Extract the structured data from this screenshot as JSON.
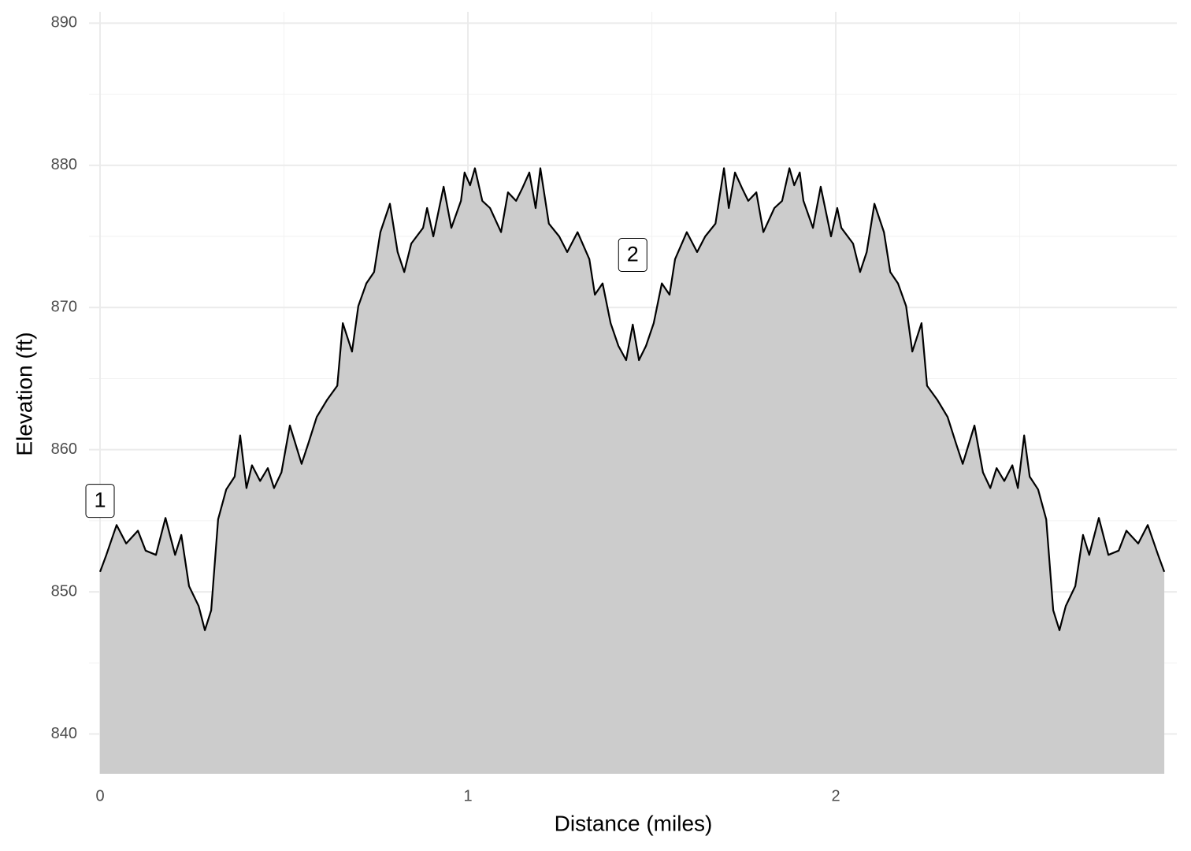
{
  "chart_data": {
    "type": "area",
    "x_label": "Distance (miles)",
    "y_label": "Elevation (ft)",
    "x": [
      0,
      0.017,
      0.045,
      0.071,
      0.103,
      0.124,
      0.152,
      0.178,
      0.204,
      0.221,
      0.242,
      0.268,
      0.285,
      0.302,
      0.321,
      0.343,
      0.366,
      0.381,
      0.398,
      0.413,
      0.435,
      0.456,
      0.473,
      0.493,
      0.516,
      0.548,
      0.567,
      0.589,
      0.617,
      0.645,
      0.66,
      0.685,
      0.702,
      0.724,
      0.745,
      0.762,
      0.788,
      0.809,
      0.827,
      0.846,
      0.878,
      0.889,
      0.906,
      0.934,
      0.955,
      0.981,
      0.991,
      1.006,
      1.019,
      1.039,
      1.06,
      1.09,
      1.109,
      1.131,
      1.148,
      1.167,
      1.184,
      1.197,
      1.22,
      1.248,
      1.27,
      1.298,
      1.33,
      1.345,
      1.366,
      1.388,
      1.409,
      1.43,
      1.448,
      1.465,
      1.484,
      1.505,
      1.527,
      1.548,
      1.563,
      1.595,
      1.623,
      1.645,
      1.673,
      1.696,
      1.709,
      1.726,
      1.745,
      1.762,
      1.784,
      1.803,
      1.833,
      1.854,
      1.874,
      1.887,
      1.902,
      1.912,
      1.938,
      1.959,
      1.987,
      2.004,
      2.015,
      2.047,
      2.066,
      2.084,
      2.105,
      2.131,
      2.148,
      2.169,
      2.191,
      2.208,
      2.233,
      2.248,
      2.276,
      2.304,
      2.326,
      2.345,
      2.377,
      2.4,
      2.42,
      2.437,
      2.458,
      2.48,
      2.495,
      2.512,
      2.527,
      2.55,
      2.572,
      2.591,
      2.608,
      2.625,
      2.651,
      2.672,
      2.689,
      2.715,
      2.741,
      2.769,
      2.79,
      2.822,
      2.848,
      2.876,
      2.893
    ],
    "values": [
      851.4,
      852.6,
      854.7,
      853.4,
      854.3,
      852.9,
      852.6,
      855.2,
      852.6,
      854.0,
      850.4,
      849.0,
      847.3,
      848.7,
      855.1,
      857.2,
      858.1,
      861.0,
      857.3,
      858.9,
      857.8,
      858.7,
      857.3,
      858.4,
      861.7,
      859.0,
      860.5,
      862.3,
      863.5,
      864.5,
      868.9,
      866.9,
      870.1,
      871.7,
      872.5,
      875.3,
      877.3,
      873.9,
      872.5,
      874.5,
      875.6,
      877.0,
      875.0,
      878.5,
      875.6,
      877.5,
      879.5,
      878.6,
      879.8,
      877.5,
      877.0,
      875.3,
      878.1,
      877.5,
      878.4,
      879.5,
      877.0,
      879.8,
      875.9,
      875.0,
      873.9,
      875.3,
      873.4,
      870.9,
      871.7,
      868.9,
      867.3,
      866.3,
      868.8,
      866.3,
      867.3,
      868.9,
      871.7,
      870.9,
      873.4,
      875.3,
      873.9,
      875.0,
      875.9,
      879.8,
      877.0,
      879.5,
      878.4,
      877.5,
      878.1,
      875.3,
      877.0,
      877.5,
      879.8,
      878.6,
      879.5,
      877.5,
      875.6,
      878.5,
      875.0,
      877.0,
      875.6,
      874.5,
      872.5,
      873.9,
      877.3,
      875.3,
      872.5,
      871.7,
      870.1,
      866.9,
      868.9,
      864.5,
      863.5,
      862.3,
      860.5,
      859.0,
      861.7,
      858.4,
      857.3,
      858.7,
      857.8,
      858.9,
      857.3,
      861.0,
      858.1,
      857.2,
      855.1,
      848.7,
      847.3,
      849.0,
      850.4,
      854.0,
      852.6,
      855.2,
      852.6,
      852.9,
      854.3,
      853.4,
      854.7,
      852.6,
      851.4
    ],
    "fill_color": "#cccccc",
    "line_color": "#000000",
    "xlim": [
      -0.03,
      2.927
    ],
    "ylim": [
      837.2,
      890.8
    ],
    "xticks": [
      0,
      1,
      2
    ],
    "yticks": [
      840,
      850,
      860,
      870,
      880,
      890
    ],
    "minor_xticks": [
      0.5,
      1.5,
      2.5
    ],
    "minor_yticks": [
      845,
      855,
      865,
      875,
      885
    ],
    "grid": true,
    "annotations": [
      {
        "text": "1",
        "x": 0,
        "y": 856.4
      },
      {
        "text": "2",
        "x": 1.448,
        "y": 873.7
      }
    ]
  }
}
